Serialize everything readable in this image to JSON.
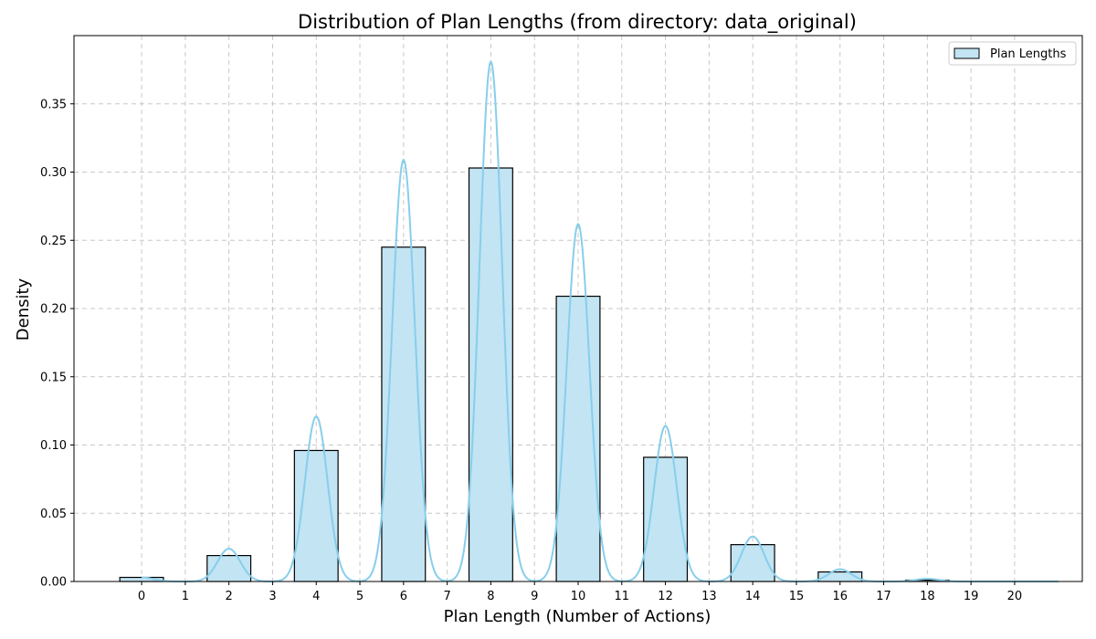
{
  "chart_data": {
    "type": "bar",
    "title": "Distribution of Plan Lengths (from directory: data_original)",
    "xlabel": "Plan Length (Number of Actions)",
    "ylabel": "Density",
    "xlim": [
      -1.55,
      21.55
    ],
    "ylim": [
      0,
      0.4
    ],
    "x_ticks": [
      0,
      1,
      2,
      3,
      4,
      5,
      6,
      7,
      8,
      9,
      10,
      11,
      12,
      13,
      14,
      15,
      16,
      17,
      18,
      19,
      20
    ],
    "y_ticks": [
      0.0,
      0.05,
      0.1,
      0.15,
      0.2,
      0.25,
      0.3,
      0.35
    ],
    "bin_width": 1,
    "bins": [
      {
        "x": 0,
        "value": 0.003
      },
      {
        "x": 2,
        "value": 0.019
      },
      {
        "x": 4,
        "value": 0.096
      },
      {
        "x": 6,
        "value": 0.245
      },
      {
        "x": 8,
        "value": 0.303
      },
      {
        "x": 10,
        "value": 0.209
      },
      {
        "x": 12,
        "value": 0.091
      },
      {
        "x": 14,
        "value": 0.027
      },
      {
        "x": 16,
        "value": 0.007
      },
      {
        "x": 18,
        "value": 0.001
      }
    ],
    "kde": {
      "peaks": [
        {
          "x": 0,
          "value": 0.003
        },
        {
          "x": 2,
          "value": 0.024
        },
        {
          "x": 4,
          "value": 0.121
        },
        {
          "x": 6,
          "value": 0.309
        },
        {
          "x": 8,
          "value": 0.381
        },
        {
          "x": 10,
          "value": 0.262
        },
        {
          "x": 12,
          "value": 0.114
        },
        {
          "x": 14,
          "value": 0.033
        },
        {
          "x": 16,
          "value": 0.009
        },
        {
          "x": 18,
          "value": 0.002
        }
      ],
      "x_range": [
        0,
        21
      ]
    },
    "grid": true,
    "legend": {
      "label": "Plan Lengths",
      "position": "top-right"
    },
    "colors": {
      "bar_fill": "#c2e4f3",
      "bar_edge": "#000000",
      "kde_line": "#87ceeb",
      "grid": "#c8c8c8"
    }
  }
}
